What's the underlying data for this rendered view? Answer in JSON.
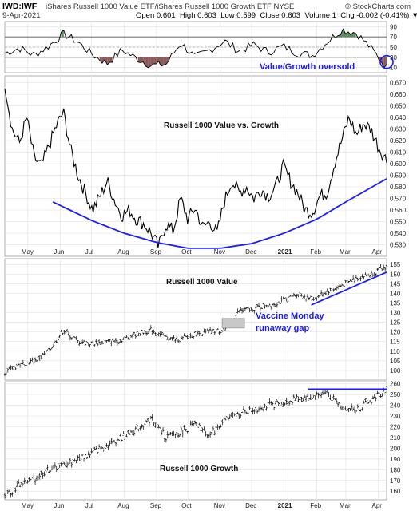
{
  "header": {
    "ticker": "IWD:IWF",
    "description": "iShares Russell 1000 Value ETF/iShares Russell 1000 Growth ETF",
    "exchange": "NYSE",
    "date": "9-Apr-2021",
    "open_label": "Open",
    "open": "0.601",
    "high_label": "High",
    "high": "0.603",
    "low_label": "Low",
    "low": "0.599",
    "close_label": "Close",
    "close": "0.603",
    "volume_label": "Volume",
    "volume": "1",
    "chg_label": "Chg",
    "chg": "-0.002 (-0.41%)",
    "watermark": "© StockCharts.com"
  },
  "colors": {
    "price_line": "#000000",
    "annotation_blue": "#1a1aff",
    "rsi_overbought_fill": "#5a8a5a",
    "rsi_oversold_fill": "#8b5a5a",
    "grid": "#e4e4e4",
    "gap_box": "#c8c8c8"
  },
  "chart_data": [
    {
      "type": "line",
      "panel": "rsi",
      "ylim": [
        0,
        100
      ],
      "yticks": [
        "10",
        "30",
        "50",
        "70",
        "90"
      ],
      "overbought": 70,
      "oversold": 30,
      "x": [
        "2020-04-09",
        "2020-04-23",
        "2020-05-07",
        "2020-05-21",
        "2020-06-04",
        "2020-06-18",
        "2020-07-02",
        "2020-07-16",
        "2020-07-30",
        "2020-08-13",
        "2020-08-27",
        "2020-09-10",
        "2020-09-24",
        "2020-10-08",
        "2020-10-22",
        "2020-11-05",
        "2020-11-19",
        "2020-12-03",
        "2020-12-17",
        "2020-12-31",
        "2021-01-14",
        "2021-01-28",
        "2021-02-11",
        "2021-02-25",
        "2021-03-11",
        "2021-03-25",
        "2021-04-09"
      ],
      "values": [
        38,
        48,
        34,
        52,
        76,
        60,
        35,
        18,
        44,
        28,
        14,
        16,
        58,
        30,
        44,
        62,
        42,
        55,
        40,
        52,
        38,
        34,
        60,
        84,
        78,
        48,
        10
      ],
      "annotation": "Value/Growth oversold"
    },
    {
      "type": "line",
      "panel": "ratio",
      "title": "Russell 1000 Value vs. Growth",
      "ylim": [
        0.52,
        0.676
      ],
      "yticks": [
        "0.530",
        "0.540",
        "0.550",
        "0.560",
        "0.570",
        "0.580",
        "0.590",
        "0.600",
        "0.610",
        "0.620",
        "0.630",
        "0.640",
        "0.650",
        "0.660",
        "0.670"
      ],
      "x": [
        "2020-04-09",
        "2020-04-16",
        "2020-04-23",
        "2020-04-30",
        "2020-05-07",
        "2020-05-14",
        "2020-05-21",
        "2020-05-28",
        "2020-06-04",
        "2020-06-11",
        "2020-06-18",
        "2020-06-25",
        "2020-07-02",
        "2020-07-09",
        "2020-07-16",
        "2020-07-23",
        "2020-07-30",
        "2020-08-06",
        "2020-08-13",
        "2020-08-20",
        "2020-08-27",
        "2020-09-03",
        "2020-09-10",
        "2020-09-17",
        "2020-09-24",
        "2020-10-01",
        "2020-10-08",
        "2020-10-15",
        "2020-10-22",
        "2020-10-29",
        "2020-11-05",
        "2020-11-12",
        "2020-11-19",
        "2020-11-26",
        "2020-12-03",
        "2020-12-10",
        "2020-12-17",
        "2020-12-24",
        "2020-12-31",
        "2021-01-07",
        "2021-01-14",
        "2021-01-21",
        "2021-01-28",
        "2021-02-04",
        "2021-02-11",
        "2021-02-18",
        "2021-02-25",
        "2021-03-04",
        "2021-03-11",
        "2021-03-18",
        "2021-03-25",
        "2021-04-01",
        "2021-04-09"
      ],
      "values": [
        0.67,
        0.63,
        0.618,
        0.64,
        0.605,
        0.598,
        0.615,
        0.632,
        0.645,
        0.612,
        0.59,
        0.575,
        0.56,
        0.572,
        0.585,
        0.568,
        0.555,
        0.56,
        0.552,
        0.548,
        0.54,
        0.528,
        0.548,
        0.542,
        0.57,
        0.552,
        0.562,
        0.545,
        0.55,
        0.54,
        0.568,
        0.585,
        0.575,
        0.58,
        0.57,
        0.578,
        0.572,
        0.58,
        0.598,
        0.585,
        0.575,
        0.56,
        0.558,
        0.572,
        0.575,
        0.6,
        0.62,
        0.64,
        0.625,
        0.635,
        0.63,
        0.615,
        0.603
      ],
      "trendline": {
        "x": [
          "2020-05-25",
          "2020-07-01",
          "2020-08-01",
          "2020-09-01",
          "2020-10-01",
          "2020-11-01",
          "2020-12-01",
          "2021-01-01",
          "2021-02-01",
          "2021-03-01",
          "2021-04-09"
        ],
        "values": [
          0.567,
          0.551,
          0.54,
          0.532,
          0.527,
          0.527,
          0.531,
          0.54,
          0.552,
          0.567,
          0.587
        ]
      }
    },
    {
      "type": "ohlc",
      "panel": "value",
      "title": "Russell 1000 Value",
      "ylim": [
        95,
        158
      ],
      "yticks": [
        "100",
        "105",
        "110",
        "115",
        "120",
        "125",
        "130",
        "135",
        "140",
        "145",
        "150",
        "155"
      ],
      "x": [
        "2020-04-09",
        "2020-04-23",
        "2020-05-07",
        "2020-05-21",
        "2020-06-04",
        "2020-06-18",
        "2020-07-02",
        "2020-07-16",
        "2020-07-30",
        "2020-08-13",
        "2020-08-27",
        "2020-09-10",
        "2020-09-24",
        "2020-10-08",
        "2020-10-22",
        "2020-11-05",
        "2020-11-19",
        "2020-12-03",
        "2020-12-17",
        "2020-12-31",
        "2021-01-14",
        "2021-01-28",
        "2021-02-11",
        "2021-02-25",
        "2021-03-11",
        "2021-03-25",
        "2021-04-09"
      ],
      "values": [
        99,
        103,
        105,
        110,
        121,
        115,
        114,
        115,
        116,
        119,
        121,
        117,
        116,
        119,
        120,
        121,
        131,
        132,
        134,
        136,
        140,
        137,
        141,
        144,
        148,
        150,
        154
      ],
      "trendline": {
        "x": [
          "2021-01-27",
          "2021-04-09"
        ],
        "values": [
          134,
          151
        ]
      },
      "annotation": "Vaccine Monday\nrunaway gap"
    },
    {
      "type": "ohlc",
      "panel": "growth",
      "title": "Russell 1000 Growth",
      "ylim": [
        152,
        262
      ],
      "yticks": [
        "160",
        "170",
        "180",
        "190",
        "200",
        "210",
        "220",
        "230",
        "240",
        "250",
        "260"
      ],
      "x": [
        "2020-04-09",
        "2020-04-23",
        "2020-05-07",
        "2020-05-21",
        "2020-06-04",
        "2020-06-18",
        "2020-07-02",
        "2020-07-16",
        "2020-07-30",
        "2020-08-13",
        "2020-08-27",
        "2020-09-10",
        "2020-09-24",
        "2020-10-08",
        "2020-10-22",
        "2020-11-05",
        "2020-11-19",
        "2020-12-03",
        "2020-12-17",
        "2020-12-31",
        "2021-01-14",
        "2021-01-28",
        "2021-02-11",
        "2021-02-25",
        "2021-03-11",
        "2021-03-25",
        "2021-04-09"
      ],
      "values": [
        155,
        166,
        172,
        180,
        184,
        190,
        196,
        203,
        210,
        218,
        228,
        210,
        215,
        222,
        212,
        226,
        232,
        236,
        240,
        242,
        246,
        248,
        252,
        238,
        236,
        244,
        255
      ],
      "trendline": {
        "x": [
          "2021-01-24",
          "2021-04-09"
        ],
        "values": [
          255,
          255
        ]
      }
    }
  ],
  "x_axis": {
    "months": [
      {
        "label": "May",
        "date": "2020-05-01"
      },
      {
        "label": "Jun",
        "date": "2020-06-01"
      },
      {
        "label": "Jul",
        "date": "2020-07-01"
      },
      {
        "label": "Aug",
        "date": "2020-08-01"
      },
      {
        "label": "Sep",
        "date": "2020-09-01"
      },
      {
        "label": "Oct",
        "date": "2020-10-01"
      },
      {
        "label": "Nov",
        "date": "2020-11-01"
      },
      {
        "label": "Dec",
        "date": "2020-12-01"
      },
      {
        "label": "2021",
        "date": "2021-01-01"
      },
      {
        "label": "Feb",
        "date": "2021-02-01"
      },
      {
        "label": "Mar",
        "date": "2021-03-01"
      },
      {
        "label": "Apr",
        "date": "2021-04-01"
      }
    ]
  }
}
